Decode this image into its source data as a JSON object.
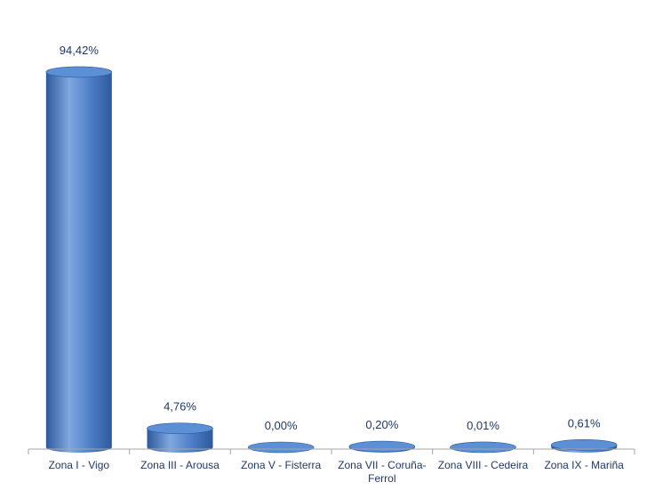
{
  "chart_data": {
    "type": "bar",
    "style": "3d-cylinder",
    "categories": [
      "Zona I - Vigo",
      "Zona III - Arousa",
      "Zona V - Fisterra",
      "Zona VII - Coruña-Ferrol",
      "Zona VIII - Cedeira",
      "Zona IX - Mariña"
    ],
    "category_lines": [
      [
        "Zona I - Vigo"
      ],
      [
        "Zona III - Arousa"
      ],
      [
        "Zona V - Fisterra"
      ],
      [
        "Zona VII - Coruña-",
        "Ferrol"
      ],
      [
        "Zona VIII - Cedeira"
      ],
      [
        "Zona IX - Mariña"
      ]
    ],
    "values": [
      94.42,
      4.76,
      0.0,
      0.2,
      0.01,
      0.61
    ],
    "value_labels": [
      "94,42%",
      "4,76%",
      "0,00%",
      "0,20%",
      "0,01%",
      "0,61%"
    ],
    "ylim": [
      0,
      100
    ],
    "grid": false,
    "legend": "none",
    "colors": {
      "bar_dark": "#2e5a9c",
      "bar_mid": "#4a7bc4",
      "bar_light": "#7fa8e0",
      "bar_top": "#5b8fd6",
      "label": "#1f3864",
      "axis": "#a6a6a6"
    }
  }
}
